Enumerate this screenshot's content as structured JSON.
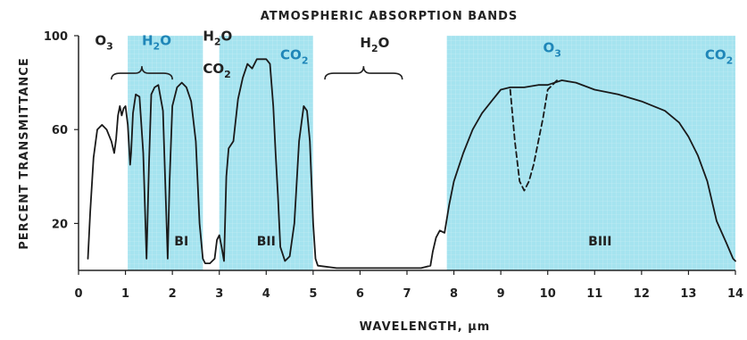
{
  "chart_data": {
    "type": "line",
    "title": "ATMOSPHERIC ABSORPTION BANDS",
    "xlabel": "WAVELENGTH, μm",
    "ylabel": "PERCENT TRANSMITTANCE",
    "xlim": [
      0,
      14
    ],
    "ylim": [
      0,
      100
    ],
    "x_ticks": [
      "0",
      "1",
      "2",
      "3",
      "4",
      "5",
      "6",
      "7",
      "8",
      "9",
      "10",
      "11",
      "12",
      "13",
      "14"
    ],
    "y_ticks": [
      "20",
      "60",
      "100"
    ],
    "grid": false,
    "legend": "none",
    "colors": {
      "band_fill": "#a5e3ef",
      "curve": "#1a1a1a",
      "gas_label_blue": "#1f86b8"
    },
    "bands": [
      {
        "label": "BI",
        "x_start": 1.05,
        "x_end": 2.65
      },
      {
        "label": "BII",
        "x_start": 3.0,
        "x_end": 5.0
      },
      {
        "label": "BIII",
        "x_start": 7.85,
        "x_end": 14.0
      }
    ],
    "absorbers": [
      {
        "gas": "O",
        "sub": "3",
        "x": 0.35,
        "y": 96,
        "color": "dark"
      },
      {
        "gas": "H",
        "sub": "2",
        "post": "O",
        "x": 1.35,
        "y": 96,
        "color": "blue"
      },
      {
        "gas": "H",
        "sub": "2",
        "post": "O",
        "x": 2.65,
        "y": 98,
        "color": "dark"
      },
      {
        "gas": "CO",
        "sub": "2",
        "x": 2.65,
        "y": 84,
        "color": "dark"
      },
      {
        "gas": "CO",
        "sub": "2",
        "x": 4.3,
        "y": 90,
        "color": "blue"
      },
      {
        "gas": "H",
        "sub": "2",
        "post": "O",
        "x": 6.0,
        "y": 95,
        "color": "dark"
      },
      {
        "gas": "O",
        "sub": "3",
        "x": 9.9,
        "y": 93,
        "color": "blue"
      },
      {
        "gas": "CO",
        "sub": "2",
        "x": 13.35,
        "y": 90,
        "color": "blue"
      }
    ],
    "braces": [
      {
        "x_start": 0.7,
        "x_end": 2.0,
        "y": 84
      },
      {
        "x_start": 5.25,
        "x_end": 6.9,
        "y": 84
      }
    ],
    "series": [
      {
        "style": "solid",
        "x": [
          0.2,
          0.25,
          0.32,
          0.4,
          0.5,
          0.6,
          0.7,
          0.76,
          0.8,
          0.84,
          0.88,
          0.92,
          0.96,
          1.0,
          1.05,
          1.1,
          1.12,
          1.16,
          1.22,
          1.3,
          1.38,
          1.45,
          1.5,
          1.55,
          1.62,
          1.7,
          1.8,
          1.86,
          1.9,
          1.94,
          2.0,
          2.1,
          2.2,
          2.3,
          2.4,
          2.5,
          2.58,
          2.65,
          2.7,
          2.8,
          2.9,
          2.95,
          3.0,
          3.05,
          3.1,
          3.15,
          3.2,
          3.3,
          3.4,
          3.5,
          3.6,
          3.7,
          3.8,
          3.9,
          4.0,
          4.08,
          4.15,
          4.2,
          4.25,
          4.3,
          4.4,
          4.5,
          4.6,
          4.7,
          4.8,
          4.87,
          4.93,
          5.0,
          5.05,
          5.1,
          5.5,
          6.0,
          6.5,
          7.0,
          7.3,
          7.5,
          7.55,
          7.62,
          7.7,
          7.8,
          7.9,
          8.0,
          8.2,
          8.4,
          8.6,
          8.8,
          9.0,
          9.2,
          9.5,
          9.8,
          10.0,
          10.3,
          10.6,
          11.0,
          11.5,
          12.0,
          12.5,
          12.8,
          13.0,
          13.2,
          13.4,
          13.6,
          13.8,
          13.95,
          14.0
        ],
        "y": [
          5,
          25,
          48,
          60,
          62,
          60,
          55,
          50,
          56,
          66,
          70,
          66,
          69,
          70,
          62,
          45,
          50,
          67,
          75,
          74,
          50,
          5,
          45,
          75,
          78,
          79,
          68,
          30,
          5,
          38,
          70,
          78,
          80,
          78,
          72,
          55,
          20,
          5,
          3,
          3,
          5,
          13,
          15,
          10,
          4,
          40,
          52,
          55,
          73,
          82,
          88,
          86,
          90,
          90,
          90,
          88,
          70,
          50,
          32,
          10,
          4,
          6,
          20,
          55,
          70,
          68,
          55,
          20,
          5,
          2,
          1,
          1,
          1,
          1,
          1,
          2,
          8,
          14,
          17,
          16,
          28,
          38,
          50,
          60,
          67,
          72,
          77,
          78,
          78,
          79,
          79,
          81,
          80,
          77,
          75,
          72,
          68,
          63,
          57,
          49,
          38,
          21,
          12,
          5,
          4
        ]
      },
      {
        "style": "dashed",
        "x": [
          9.2,
          9.3,
          9.4,
          9.5,
          9.6,
          9.7,
          9.8,
          9.9,
          10.0,
          10.2
        ],
        "y": [
          77,
          55,
          38,
          34,
          38,
          45,
          55,
          65,
          77,
          81
        ]
      }
    ]
  }
}
